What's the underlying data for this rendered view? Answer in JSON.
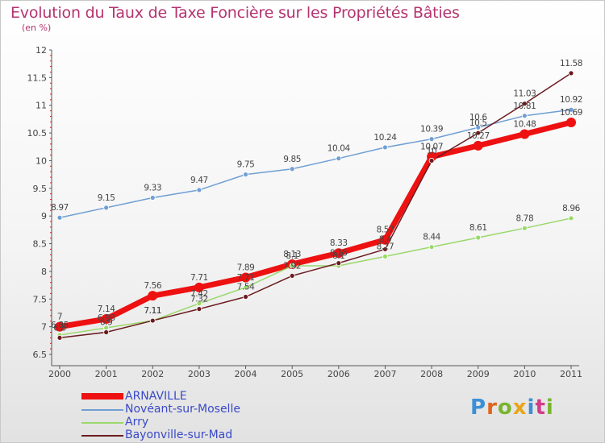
{
  "title": "Evolution du Taux de Taxe Foncière sur les Propriétés Bâties",
  "subtitle": "(en %)",
  "brand": {
    "text": "Proxiti",
    "letters": [
      "P",
      "r",
      "o",
      "x",
      "i",
      "t",
      "i"
    ],
    "colors": [
      "#3b8fd6",
      "#e0641c",
      "#78b52e",
      "#e8a51a",
      "#3b8fd6",
      "#d23c8a",
      "#78b52e"
    ]
  },
  "chart_data": {
    "type": "line",
    "title": "Evolution du Taux de Taxe Foncière sur les Propriétés Bâties",
    "ylabel": "(en %)",
    "xlabel": "",
    "categories": [
      "2000",
      "2001",
      "2002",
      "2003",
      "2004",
      "2005",
      "2006",
      "2007",
      "2008",
      "2009",
      "2010",
      "2011"
    ],
    "ylim": [
      6.5,
      12
    ],
    "yticks": [
      "6.5",
      "7",
      "7.5",
      "8",
      "8.5",
      "9",
      "9.5",
      "10",
      "10.5",
      "11",
      "11.5",
      "12"
    ],
    "grid": false,
    "legend_position": "bottom-left",
    "series": [
      {
        "name": "ARNAVILLE",
        "color": "#ee1111",
        "width": 7,
        "marker": 6,
        "values": [
          7.0,
          7.14,
          7.56,
          7.71,
          7.89,
          8.13,
          8.33,
          8.57,
          10.07,
          10.27,
          10.48,
          10.69
        ],
        "labels": [
          "7",
          "7.14",
          "7.56",
          "7.71",
          "7.89",
          "8.13",
          "8.33",
          "8.57",
          "10.07",
          "10.27",
          "10.48",
          "10.69"
        ]
      },
      {
        "name": "Novéant-sur-Moselle",
        "color": "#6f9fd3",
        "width": 1.5,
        "marker": 3,
        "values": [
          8.97,
          9.15,
          9.33,
          9.47,
          9.75,
          9.85,
          10.04,
          10.24,
          10.39,
          10.6,
          10.81,
          10.92
        ],
        "labels": [
          "8.97",
          "9.15",
          "9.33",
          "9.47",
          "9.75",
          "9.85",
          "10.04",
          "10.24",
          "10.39",
          "10.6",
          "10.81",
          "10.92"
        ]
      },
      {
        "name": "Arry",
        "color": "#9ad86a",
        "width": 1.5,
        "marker": 3,
        "values": [
          6.85,
          6.98,
          7.11,
          7.42,
          7.71,
          8.1,
          8.1,
          8.27,
          8.44,
          8.61,
          8.78,
          8.96
        ],
        "labels": [
          "6.85",
          "6.98",
          "7.11",
          "7.42",
          "7.71",
          "8.1",
          "8.1",
          "8.27",
          "8.44",
          "8.61",
          "8.78",
          "8.96"
        ]
      },
      {
        "name": "Bayonville-sur-Mad",
        "color": "#6b1c1f",
        "width": 1.5,
        "marker": 3,
        "values": [
          6.8,
          6.9,
          7.11,
          7.32,
          7.54,
          7.92,
          8.15,
          8.4,
          10.0,
          10.5,
          11.03,
          11.58
        ],
        "labels": [
          "6.8",
          "6.9",
          "7.11",
          "7.32",
          "7.54",
          "7.92",
          "8.15",
          "8.4",
          "10",
          "10.5",
          "11.03",
          "11.58"
        ]
      }
    ]
  }
}
